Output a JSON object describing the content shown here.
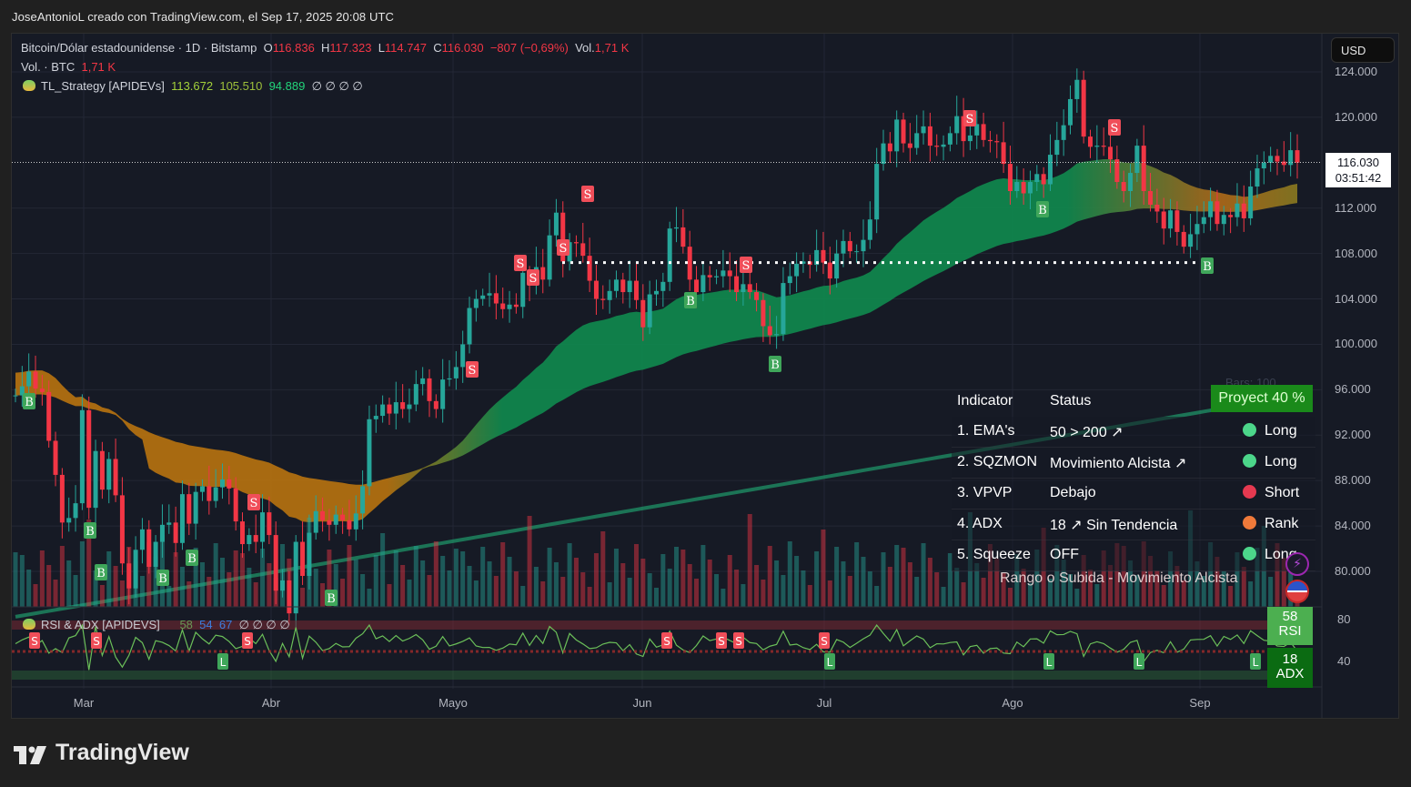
{
  "credit": "JoseAntonioL creado con TradingView.com, el Sep 17, 2025 20:08 UTC",
  "header": {
    "symbol": "Bitcoin/Dólar estadounidense · 1D · Bitstamp",
    "open_label": "O",
    "open": "116.836",
    "high_label": "H",
    "high": "117.323",
    "low_label": "L",
    "low": "114.747",
    "close_label": "C",
    "close": "116.030",
    "change": "−807 (−0,69%)",
    "vol_label": "Vol.",
    "vol": "1,71 K",
    "vol_btc_label": "Vol. · BTC",
    "vol_btc": "1,71 K",
    "strategy_name": "TL_Strategy [APIDEVs]",
    "strategy_v1": "113.672",
    "strategy_v2": "105.510",
    "strategy_v3": "94.889",
    "strategy_nulls": "∅  ∅  ∅  ∅"
  },
  "currency_button": "USD",
  "price_axis": {
    "labels": [
      "124.000",
      "120.000",
      "112.000",
      "108.000",
      "104.000",
      "100.000",
      "96.000",
      "92.000",
      "88.000",
      "84.000",
      "80.000"
    ],
    "current_price": "116.030",
    "countdown": "03:51:42"
  },
  "time_axis": [
    "Mar",
    "Abr",
    "Mayo",
    "Jun",
    "Jul",
    "Ago",
    "Sep"
  ],
  "table": {
    "headers": {
      "indicator": "Indicator",
      "status": "Status"
    },
    "project_label": "Proyect 40 %",
    "bars_label": "Bars: 100",
    "rows": [
      {
        "indicator": "1. EMA's",
        "status": "50 > 200 ↗",
        "signal": "Long",
        "color": "#4cd68a"
      },
      {
        "indicator": "2. SQZMON",
        "status": "Movimiento Alcista ↗",
        "signal": "Long",
        "color": "#4cd68a"
      },
      {
        "indicator": "3. VPVP",
        "status": "Debajo",
        "signal": "Short",
        "color": "#e53950"
      },
      {
        "indicator": "4. ADX",
        "status": "18 ↗ Sin Tendencia",
        "signal": "Rank",
        "color": "#f07a3a"
      },
      {
        "indicator": "5. Squeeze",
        "status": "OFF",
        "signal": "Long",
        "color": "#4cd68a"
      }
    ],
    "footer": "Rango o Subida - Movimiento Alcista"
  },
  "rsi_pane": {
    "name": "RSI & ADX [APIDEVS]",
    "v1": "58",
    "v2": "54",
    "v3": "67",
    "nulls": "∅  ∅  ∅  ∅",
    "axis": [
      "80",
      "40"
    ],
    "rsi_badge_value": "58",
    "rsi_badge_label": "RSI",
    "adx_badge_value": "18",
    "adx_badge_label": "ADX"
  },
  "brand": "TradingView",
  "colors": {
    "up": "#26a69a",
    "down": "#f23645",
    "bg": "#161a25",
    "cloud_green": "#0f8a4e",
    "cloud_orange": "#b8730f"
  },
  "chart_data": {
    "type": "candlestick",
    "title": "Bitcoin/Dólar estadounidense · 1D · Bitstamp",
    "xlabel": "",
    "ylabel": "USD",
    "ylim": [
      78000,
      125000
    ],
    "x_ticks": [
      "Mar",
      "Abr",
      "Mayo",
      "Jun",
      "Jul",
      "Ago",
      "Sep"
    ],
    "y_ticks": [
      80000,
      84000,
      88000,
      92000,
      96000,
      100000,
      104000,
      108000,
      112000,
      116000,
      120000,
      124000
    ],
    "last": {
      "open": 116836,
      "high": 117323,
      "low": 114747,
      "close": 116030,
      "change": -807,
      "change_pct": -0.69
    },
    "close_series_k": [
      95.5,
      96.3,
      97.6,
      96.1,
      95.8,
      91.5,
      88.5,
      84.3,
      84.7,
      86.0,
      94.2,
      85.6,
      90.6,
      87.2,
      89.9,
      86.7,
      80.7,
      78.5,
      81.9,
      83.7,
      80.4,
      82.6,
      84.1,
      84.3,
      82.5,
      86.8,
      84.2,
      87.0,
      87.5,
      86.2,
      87.4,
      88.1,
      87.3,
      84.4,
      82.4,
      83.2,
      82.6,
      85.2,
      83.2,
      78.3,
      79.2,
      76.3,
      82.6,
      79.6,
      83.4,
      85.3,
      84.5,
      84.1,
      85.0,
      84.5,
      83.7,
      85.1,
      87.5,
      93.4,
      93.7,
      94.7,
      93.9,
      94.9,
      94.3,
      94.7,
      96.5,
      97.0,
      95.0,
      94.3,
      96.9,
      97.0,
      98.0,
      100.0,
      103.2,
      104.0,
      104.3,
      104.5,
      103.6,
      103.1,
      103.5,
      103.3,
      106.3,
      105.2,
      106.8,
      105.7,
      109.6,
      111.6,
      107.3,
      109.0,
      108.9,
      107.8,
      105.6,
      104.0,
      103.9,
      104.7,
      105.7,
      104.6,
      105.6,
      103.9,
      101.5,
      104.4,
      104.7,
      105.5,
      110.2,
      110.3,
      108.6,
      105.7,
      104.6,
      106.1,
      105.9,
      106.0,
      106.5,
      106.0,
      104.6,
      105.3,
      104.6,
      103.9,
      101.6,
      100.8,
      100.9,
      105.4,
      106.0,
      107.1,
      107.3,
      107.0,
      108.3,
      107.2,
      105.8,
      108.0,
      109.1,
      108.2,
      108.2,
      109.2,
      111.0,
      115.9,
      117.7,
      117.0,
      119.8,
      117.7,
      117.3,
      118.6,
      119.2,
      117.5,
      117.4,
      117.6,
      118.6,
      120.1,
      117.9,
      118.4,
      119.4,
      118.0,
      117.9,
      117.8,
      115.9,
      113.5,
      114.3,
      113.3,
      114.3,
      115.0,
      114.1,
      116.7,
      118.0,
      119.3,
      121.6,
      123.3,
      118.3,
      117.4,
      117.5,
      117.4,
      116.3,
      114.3,
      113.5,
      115.1,
      117.5,
      113.5,
      112.3,
      111.7,
      110.2,
      111.8,
      109.9,
      108.6,
      109.7,
      110.6,
      111.2,
      112.6,
      110.6,
      111.4,
      111.2,
      112.4,
      111.1,
      113.9,
      115.5,
      116.0,
      116.6,
      116.1,
      115.8,
      117.1,
      116.0
    ]
  }
}
